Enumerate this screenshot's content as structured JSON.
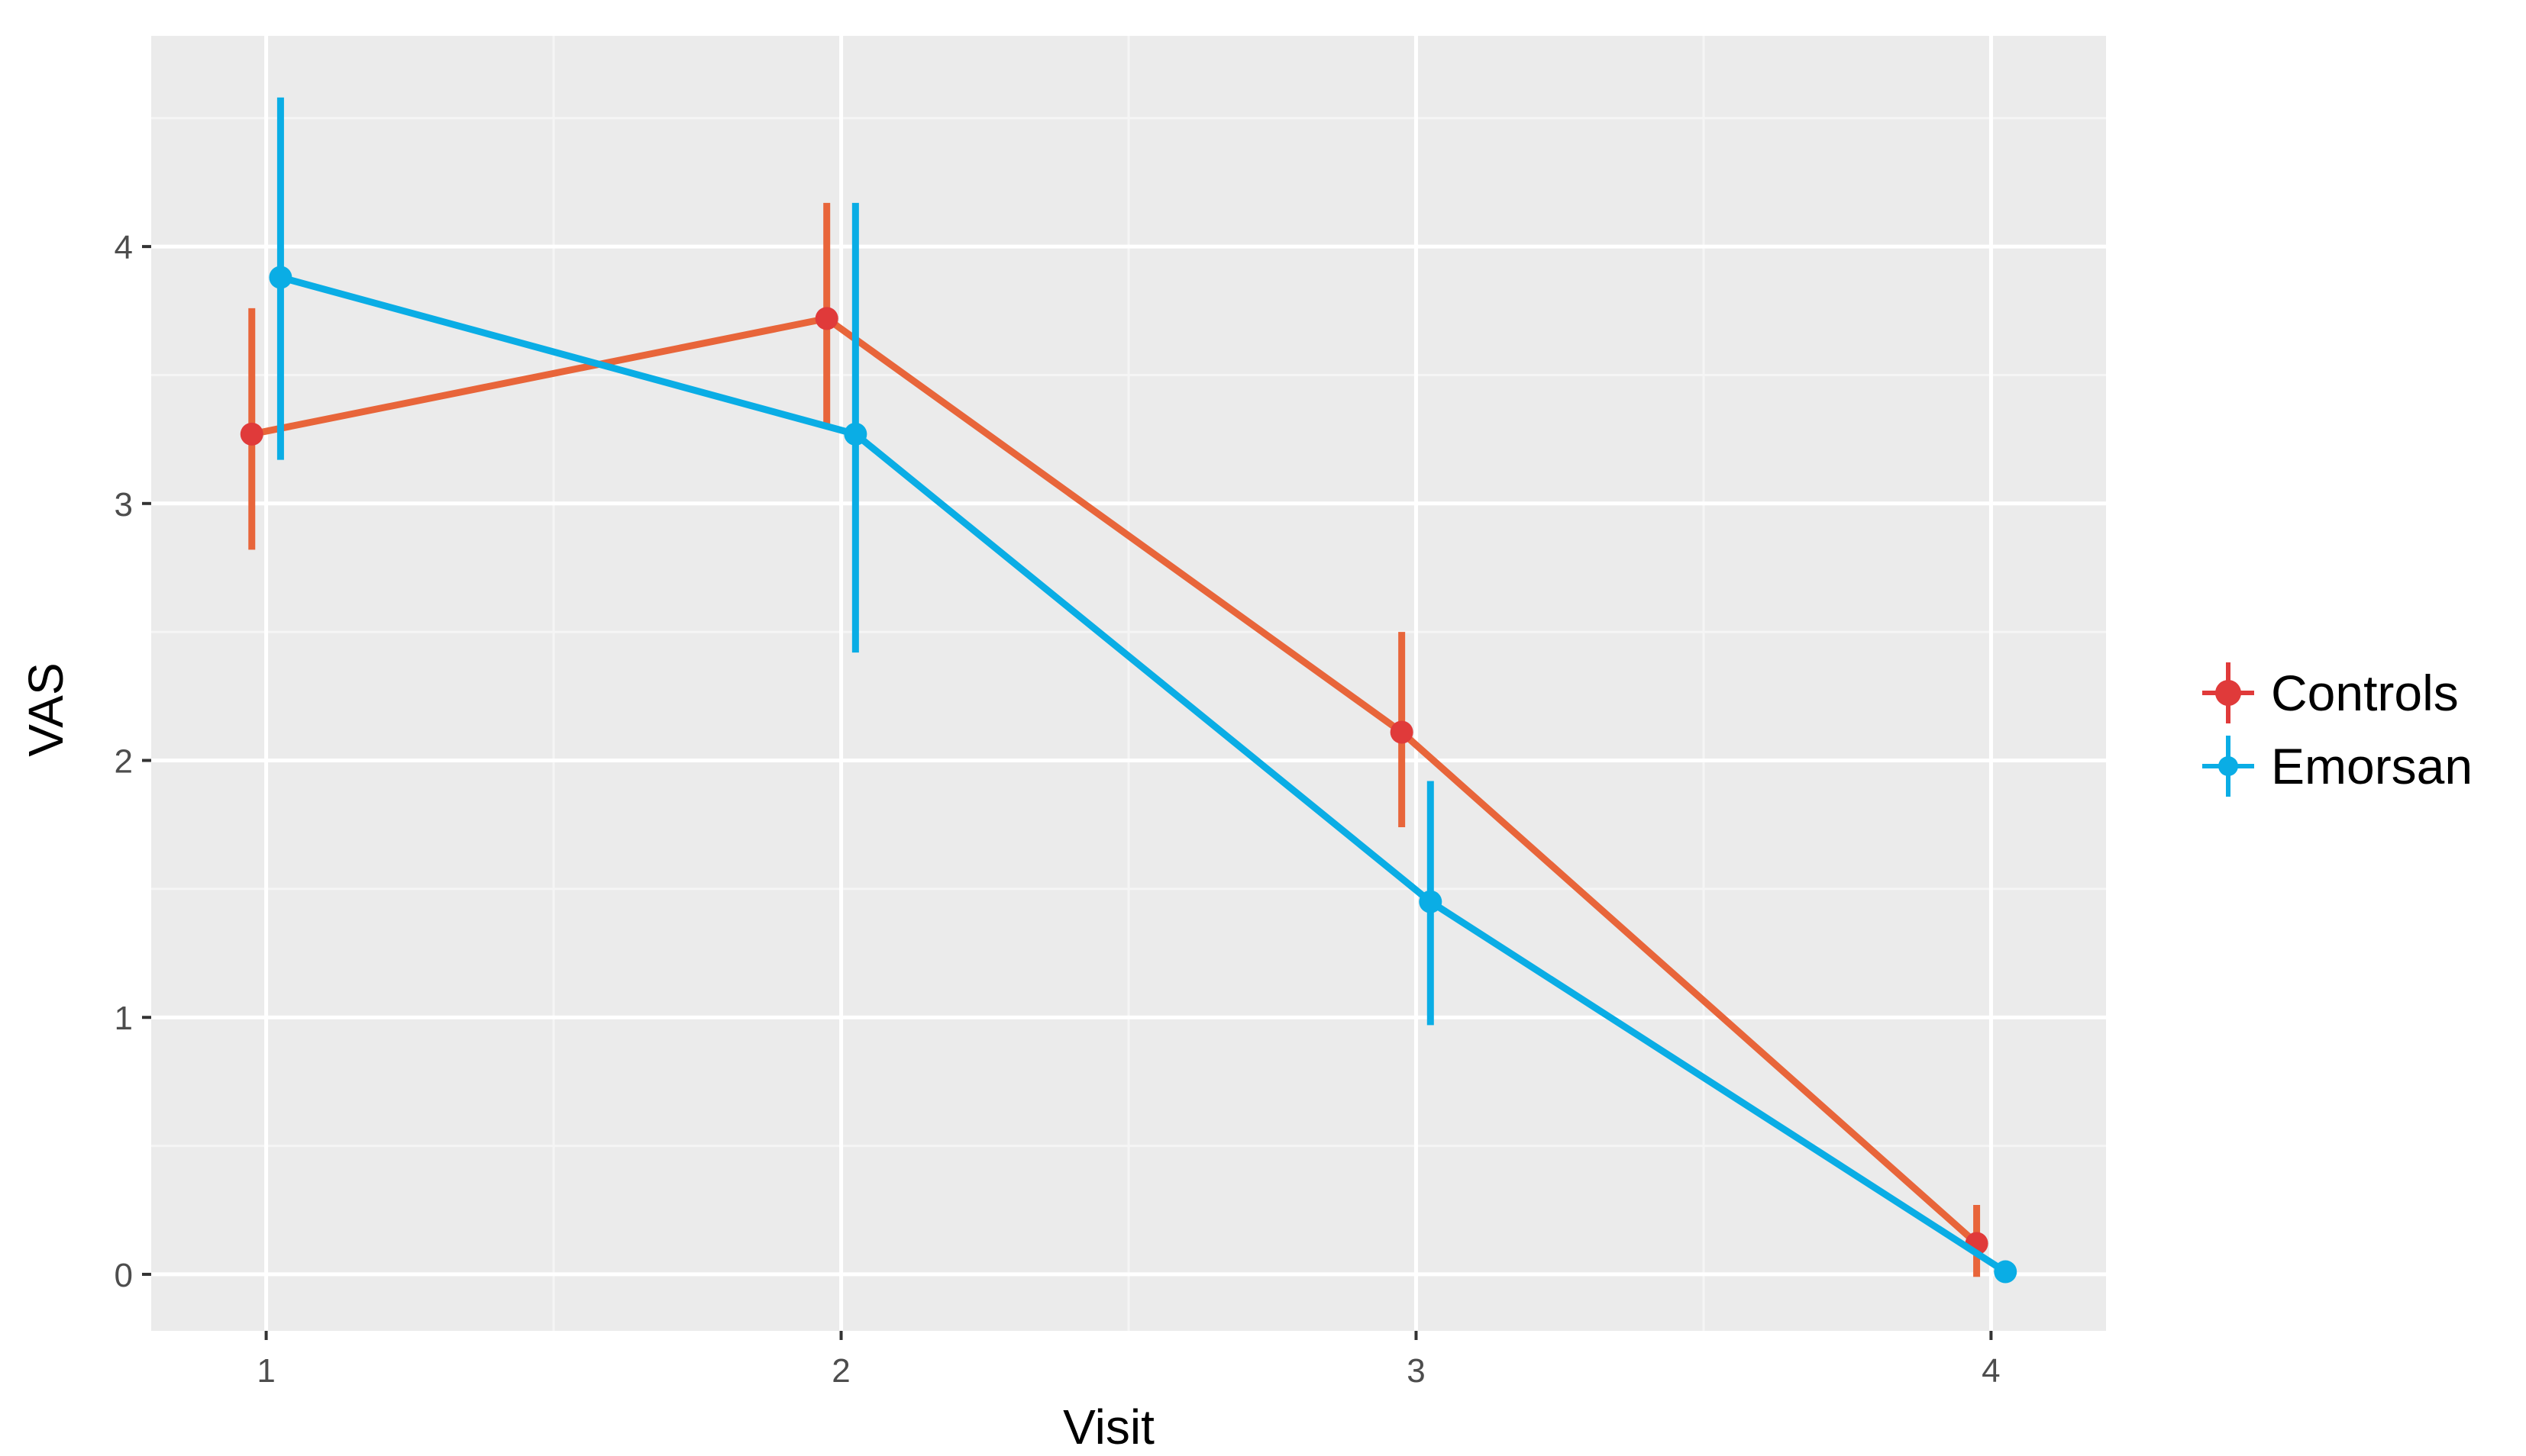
{
  "chart_data": {
    "type": "line",
    "title": "",
    "xlabel": "Visit",
    "ylabel": "VAS",
    "x": [
      1,
      2,
      3,
      4
    ],
    "x_tick_labels": [
      "1",
      "2",
      "3",
      "4"
    ],
    "y_tick_labels": [
      "0",
      "1",
      "2",
      "3",
      "4"
    ],
    "xlim": [
      0.8,
      4.2
    ],
    "ylim": [
      -0.22,
      4.82
    ],
    "grid": true,
    "legend_position": "right",
    "series": [
      {
        "name": "Controls",
        "color": "#E8653A",
        "point_color": "#E03A3A",
        "values": [
          3.27,
          3.72,
          2.11,
          0.12
        ],
        "error_low": [
          2.82,
          3.3,
          1.74,
          -0.01
        ],
        "error_high": [
          3.76,
          4.17,
          2.5,
          0.27
        ]
      },
      {
        "name": "Emorsan",
        "color": "#0AADE5",
        "point_color": "#0AADE5",
        "values": [
          3.88,
          3.27,
          1.45,
          0.01
        ],
        "error_low": [
          3.17,
          2.42,
          0.97,
          0.01
        ],
        "error_high": [
          4.58,
          4.17,
          1.92,
          0.01
        ]
      }
    ]
  }
}
